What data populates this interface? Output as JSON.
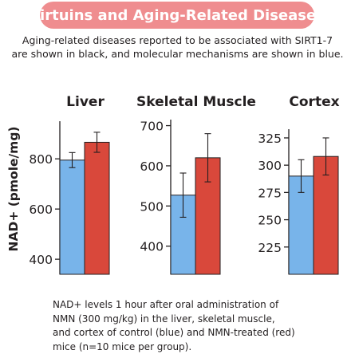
{
  "title": "Sirtuins and Aging-Related Diseases",
  "subtitle_lines": [
    "Aging-related diseases reported to be associated with SIRT1-7",
    "are shown in black, and molecular mechanisms are shown in blue."
  ],
  "caption_lines": [
    "NAD+ levels 1 hour after oral administration of",
    "NMN (300 mg/kg) in the liver, skeletal muscle,",
    "and cortex of control (blue) and NMN-treated (red)",
    "mice (n=10 mice per group)."
  ],
  "colors": {
    "title_bg": "#ef8d8f",
    "control": "#78b4ea",
    "nmn": "#d9483b"
  },
  "chart_data": [
    {
      "type": "bar",
      "title": "Liver",
      "ylabel": "NAD+ (pmole/mg)",
      "ylim": [
        340,
        950
      ],
      "yticks": [
        400,
        600,
        800
      ],
      "series": [
        {
          "color": "control",
          "value": 795,
          "error": 30
        },
        {
          "color": "nmn",
          "value": 866,
          "error": 40
        }
      ]
    },
    {
      "type": "bar",
      "title": "Skeletal Muscle",
      "ylabel": "",
      "ylim": [
        330,
        715
      ],
      "yticks": [
        400,
        500,
        600,
        700
      ],
      "series": [
        {
          "color": "control",
          "value": 527,
          "error": 55
        },
        {
          "color": "nmn",
          "value": 620,
          "error": 60
        }
      ]
    },
    {
      "type": "bar",
      "title": "Cortex",
      "ylabel": "",
      "ylim": [
        200,
        333
      ],
      "yticks": [
        225,
        250,
        275,
        300,
        325
      ],
      "series": [
        {
          "color": "control",
          "value": 290,
          "error": 15
        },
        {
          "color": "nmn",
          "value": 308,
          "error": 17
        }
      ]
    }
  ]
}
